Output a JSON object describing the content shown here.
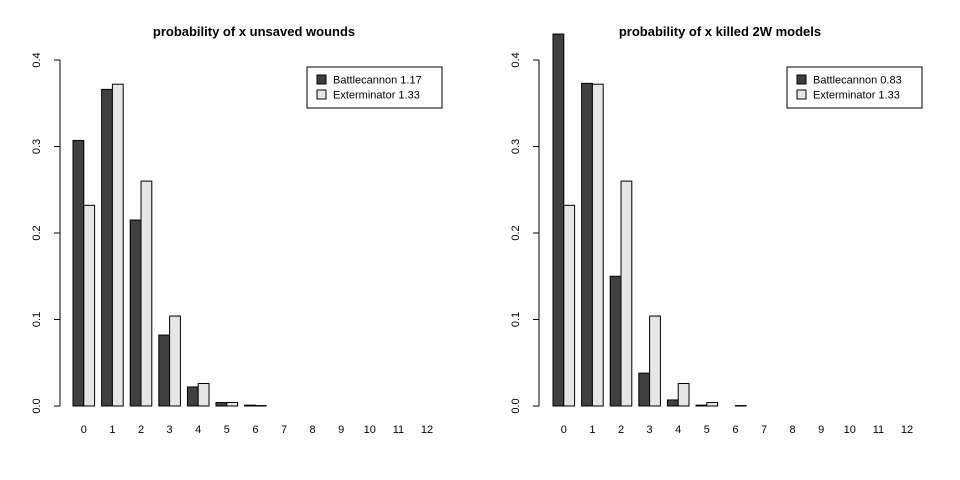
{
  "colors": {
    "series_dark": "#404040",
    "series_light": "#e6e6e6",
    "axis": "#000000",
    "background": "#ffffff"
  },
  "chart_data": [
    {
      "type": "bar",
      "title": "probability of x unsaved wounds",
      "xlabel": "",
      "ylabel": "",
      "categories": [
        "0",
        "1",
        "2",
        "3",
        "4",
        "5",
        "6",
        "7",
        "8",
        "9",
        "10",
        "11",
        "12"
      ],
      "yticks": [
        "0.0",
        "0.1",
        "0.2",
        "0.3",
        "0.4"
      ],
      "ylim": [
        0,
        0.4
      ],
      "legend_position": "top-right",
      "grid": false,
      "series": [
        {
          "name": "Battlecannon 1.17",
          "color": "#404040",
          "values": [
            0.307,
            0.366,
            0.215,
            0.082,
            0.022,
            0.004,
            0.001,
            0.0,
            0.0,
            0.0,
            0.0,
            0.0,
            0.0
          ]
        },
        {
          "name": "Exterminator 1.33",
          "color": "#e6e6e6",
          "values": [
            0.232,
            0.372,
            0.26,
            0.104,
            0.026,
            0.004,
            0.0005,
            0.0,
            0.0,
            0.0,
            0.0,
            0.0,
            0.0
          ]
        }
      ]
    },
    {
      "type": "bar",
      "title": "probability of x killed 2W models",
      "xlabel": "",
      "ylabel": "",
      "categories": [
        "0",
        "1",
        "2",
        "3",
        "4",
        "5",
        "6",
        "7",
        "8",
        "9",
        "10",
        "11",
        "12"
      ],
      "yticks": [
        "0.0",
        "0.1",
        "0.2",
        "0.3",
        "0.4"
      ],
      "ylim": [
        0,
        0.4
      ],
      "legend_position": "top-right",
      "grid": false,
      "series": [
        {
          "name": "Battlecannon 0.83",
          "color": "#404040",
          "values": [
            0.43,
            0.373,
            0.15,
            0.038,
            0.007,
            0.001,
            0.0,
            0.0,
            0.0,
            0.0,
            0.0,
            0.0,
            0.0
          ]
        },
        {
          "name": "Exterminator 1.33",
          "color": "#e6e6e6",
          "values": [
            0.232,
            0.372,
            0.26,
            0.104,
            0.026,
            0.004,
            0.0005,
            0.0,
            0.0,
            0.0,
            0.0,
            0.0,
            0.0
          ]
        }
      ]
    }
  ]
}
